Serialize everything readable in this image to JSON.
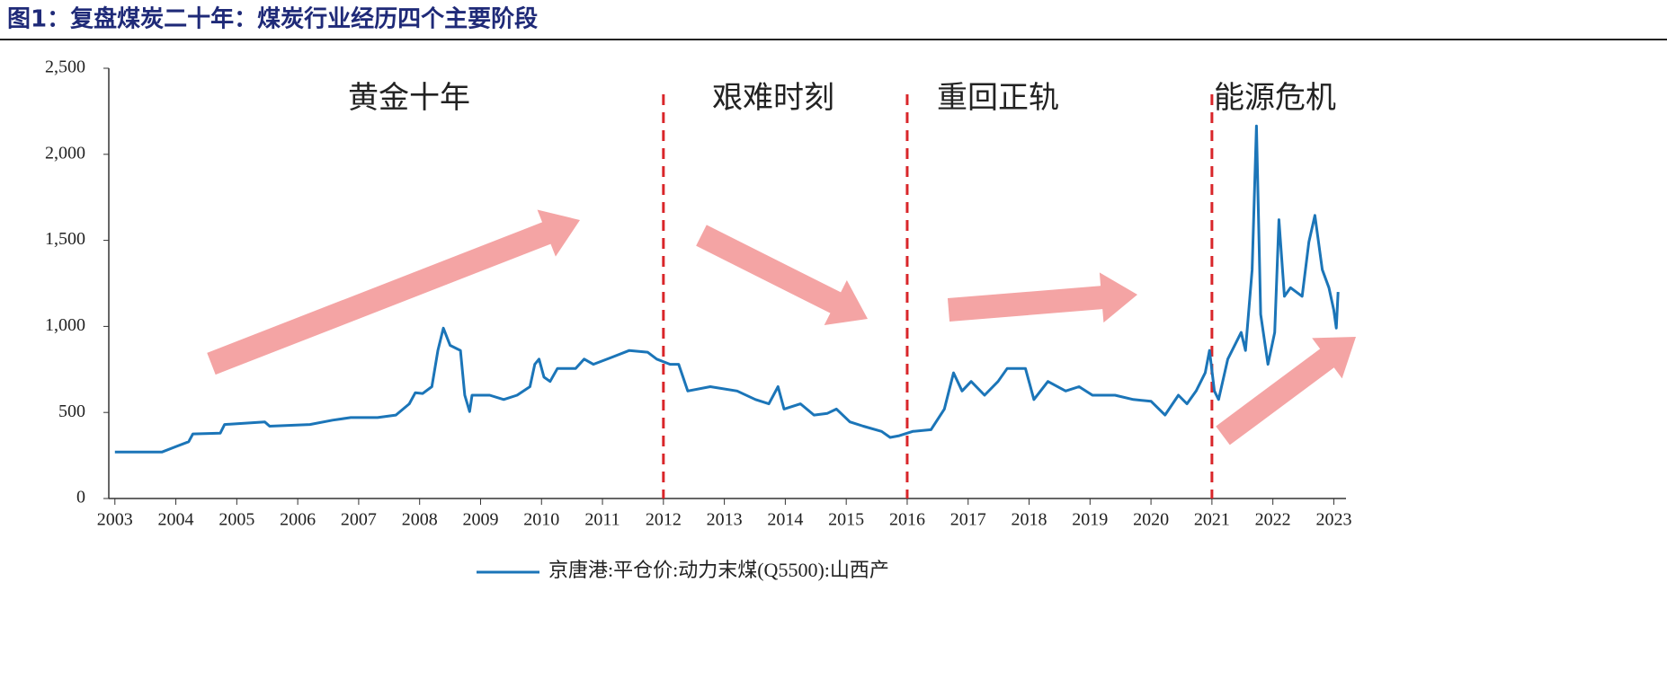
{
  "chart_data": {
    "type": "line",
    "title": "图1：复盘煤炭二十年：煤炭行业经历四个主要阶段",
    "x": [
      2003.0,
      2003.77,
      2003.99,
      2004.21,
      2004.28,
      2004.73,
      2004.8,
      2005.46,
      2005.54,
      2006.2,
      2006.57,
      2006.87,
      2007.31,
      2007.61,
      2007.83,
      2007.93,
      2008.05,
      2008.2,
      2008.3,
      2008.39,
      2008.5,
      2008.67,
      2008.74,
      2008.82,
      2008.86,
      2009.15,
      2009.38,
      2009.6,
      2009.81,
      2009.89,
      2009.96,
      2010.04,
      2010.14,
      2010.26,
      2010.56,
      2010.7,
      2010.85,
      2011.15,
      2011.44,
      2011.74,
      2011.89,
      2012.11,
      2012.25,
      2012.4,
      2012.77,
      2013.21,
      2013.51,
      2013.73,
      2013.88,
      2013.98,
      2014.25,
      2014.47,
      2014.69,
      2014.84,
      2015.06,
      2015.28,
      2015.58,
      2015.72,
      2015.87,
      2016.09,
      2016.39,
      2016.61,
      2016.76,
      2016.9,
      2017.05,
      2017.27,
      2017.49,
      2017.64,
      2017.94,
      2018.08,
      2018.31,
      2018.6,
      2018.82,
      2019.04,
      2019.41,
      2019.71,
      2020.0,
      2020.23,
      2020.45,
      2020.59,
      2020.74,
      2020.89,
      2020.96,
      2021.04,
      2021.11,
      2021.26,
      2021.48,
      2021.55,
      2021.66,
      2021.73,
      2021.8,
      2021.92,
      2022.03,
      2022.1,
      2022.19,
      2022.29,
      2022.48,
      2022.59,
      2022.69,
      2022.81,
      2022.92,
      2023.0,
      2023.04,
      2023.07
    ],
    "series": [
      {
        "name": "京唐港:平仓价:动力末煤(Q5500):山西产",
        "color": "#1b75b8",
        "values": [
          270,
          270,
          300,
          330,
          375,
          380,
          430,
          445,
          420,
          430,
          455,
          470,
          470,
          485,
          550,
          615,
          610,
          650,
          860,
          990,
          890,
          860,
          600,
          505,
          600,
          600,
          575,
          600,
          650,
          780,
          810,
          705,
          680,
          755,
          755,
          810,
          780,
          820,
          860,
          850,
          810,
          780,
          780,
          625,
          650,
          625,
          575,
          550,
          650,
          520,
          550,
          485,
          495,
          520,
          445,
          420,
          390,
          355,
          365,
          390,
          400,
          520,
          730,
          625,
          680,
          600,
          680,
          755,
          755,
          575,
          680,
          625,
          650,
          600,
          600,
          575,
          565,
          485,
          600,
          550,
          625,
          730,
          860,
          625,
          575,
          810,
          965,
          860,
          1330,
          2165,
          1070,
          780,
          965,
          1620,
          1175,
          1225,
          1175,
          1490,
          1645,
          1330,
          1225,
          1095,
          990,
          1200
        ]
      }
    ],
    "xlim": [
      2002.9,
      2023.2
    ],
    "xticks": [
      2003,
      2004,
      2005,
      2006,
      2007,
      2008,
      2009,
      2010,
      2011,
      2012,
      2013,
      2014,
      2015,
      2016,
      2017,
      2018,
      2019,
      2020,
      2021,
      2022,
      2023
    ],
    "ylim": [
      0,
      2500
    ],
    "yticks": [
      0,
      500,
      {
        "value": 1000,
        "label": "1,000"
      },
      {
        "value": 1500,
        "label": "1,500"
      },
      {
        "value": 2000,
        "label": "2,000"
      },
      {
        "value": 2500,
        "label": "2,500"
      }
    ],
    "dividers": [
      2012,
      2016,
      2021
    ],
    "divider_color": "#d9262a",
    "phase_labels": [
      "黄金十年",
      "艰难时刻",
      "重回正轨",
      "能源危机"
    ],
    "legend": "bottom"
  }
}
